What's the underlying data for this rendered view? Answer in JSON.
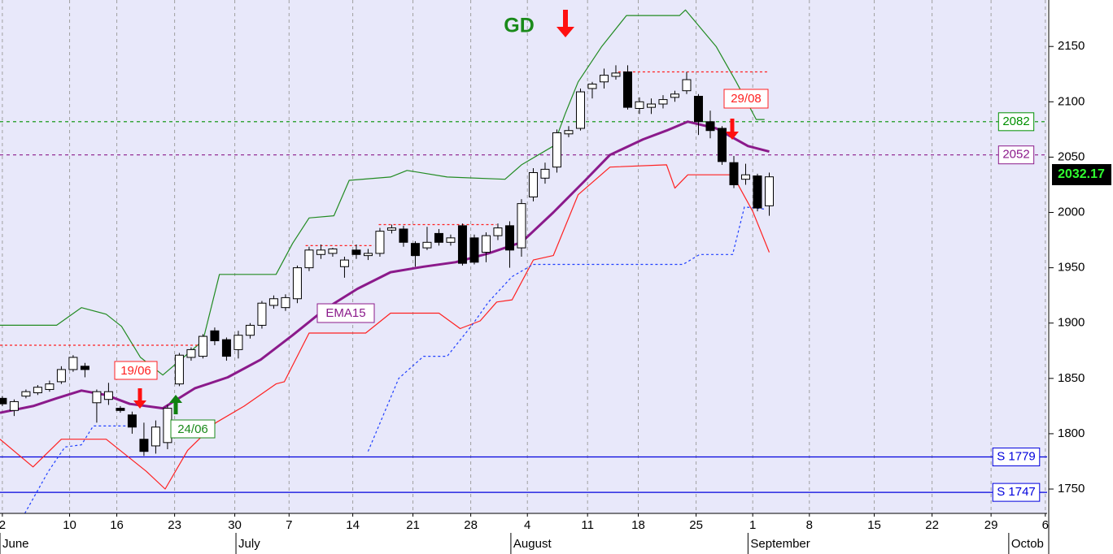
{
  "chart_data": {
    "type": "candlestick",
    "x": [
      0,
      1,
      2,
      3,
      4,
      5,
      6,
      7,
      8,
      9,
      10,
      11,
      12,
      13,
      14,
      15,
      16,
      17,
      18,
      19,
      20,
      21,
      22,
      23,
      24,
      25,
      26,
      27,
      28,
      29,
      30,
      31,
      32,
      33,
      34,
      35,
      36,
      37,
      38,
      39,
      40,
      41,
      42,
      43,
      44,
      45,
      46,
      47,
      48,
      49,
      50,
      51,
      52,
      53,
      54,
      55,
      56,
      57,
      58,
      59,
      60,
      61,
      62,
      63,
      64,
      65
    ],
    "open": [
      1832,
      1821,
      1834,
      1837,
      1840,
      1847,
      1858,
      1861,
      1828,
      1831,
      1823,
      1817,
      1795,
      1789,
      1792,
      1845,
      1869,
      1870,
      1893,
      1885,
      1876,
      1889,
      1898,
      1916,
      1914,
      1922,
      1950,
      1962,
      1963,
      1951,
      1966,
      1961,
      1963,
      1984,
      1985,
      1972,
      1968,
      1981,
      1973,
      1988,
      1977,
      1964,
      1979,
      1988,
      1968,
      2014,
      2031,
      2041,
      2071,
      2076,
      2112,
      2118,
      2123,
      2127,
      2094,
      2095,
      2098,
      2104,
      2110,
      2105,
      2082,
      2076,
      2045,
      2030,
      2033,
      2006
    ],
    "high": [
      1834,
      1831,
      1840,
      1844,
      1848,
      1861,
      1871,
      1864,
      1840,
      1846,
      1825,
      1820,
      1810,
      1812,
      1826,
      1873,
      1878,
      1890,
      1896,
      1887,
      1893,
      1900,
      1920,
      1925,
      1926,
      1952,
      1969,
      1971,
      1968,
      1960,
      1971,
      1967,
      1986,
      1989,
      1988,
      1974,
      1987,
      1985,
      1980,
      1990,
      1980,
      1982,
      1990,
      1992,
      2012,
      2040,
      2045,
      2075,
      2078,
      2112,
      2118,
      2130,
      2133,
      2133,
      2104,
      2103,
      2106,
      2110,
      2127,
      2107,
      2092,
      2078,
      2051,
      2044,
      2035,
      2036
    ],
    "low": [
      1825,
      1816,
      1832,
      1835,
      1838,
      1845,
      1856,
      1851,
      1810,
      1826,
      1819,
      1800,
      1780,
      1782,
      1786,
      1843,
      1866,
      1868,
      1880,
      1866,
      1868,
      1886,
      1895,
      1913,
      1911,
      1918,
      1947,
      1958,
      1960,
      1941,
      1958,
      1957,
      1960,
      1981,
      1969,
      1951,
      1966,
      1970,
      1970,
      1952,
      1953,
      1955,
      1975,
      1950,
      1960,
      2010,
      2026,
      2036,
      2068,
      2074,
      2103,
      2112,
      2120,
      2093,
      2089,
      2089,
      2094,
      2100,
      2107,
      2070,
      2067,
      2043,
      2022,
      2025,
      2001,
      1997
    ],
    "close": [
      1827,
      1829,
      1838,
      1842,
      1845,
      1858,
      1869,
      1858,
      1838,
      1838,
      1821,
      1806,
      1784,
      1806,
      1823,
      1871,
      1876,
      1888,
      1884,
      1870,
      1889,
      1898,
      1918,
      1922,
      1923,
      1950,
      1966,
      1966,
      1967,
      1957,
      1962,
      1963,
      1983,
      1986,
      1973,
      1961,
      1973,
      1973,
      1977,
      1954,
      1955,
      1979,
      1986,
      1966,
      2008,
      2036,
      2039,
      2072,
      2074,
      2109,
      2116,
      2124,
      2126,
      2095,
      2100,
      2098,
      2102,
      2107,
      2120,
      2082,
      2074,
      2046,
      2025,
      2034,
      2004,
      2032.17
    ],
    "up_color": "#ffffff",
    "down_color": "#000000",
    "xlim": [
      -0.2,
      88.55
    ],
    "xticks": [
      {
        "value": 0,
        "label": "2"
      },
      {
        "value": 5.7,
        "label": "10"
      },
      {
        "value": 9.7,
        "label": "16"
      },
      {
        "value": 14.6,
        "label": "23"
      },
      {
        "value": 19.7,
        "label": "30"
      },
      {
        "value": 24.3,
        "label": "7"
      },
      {
        "value": 29.7,
        "label": "14"
      },
      {
        "value": 34.8,
        "label": "21"
      },
      {
        "value": 39.7,
        "label": "28"
      },
      {
        "value": 44.5,
        "label": "4"
      },
      {
        "value": 49.6,
        "label": "11"
      },
      {
        "value": 53.9,
        "label": "18"
      },
      {
        "value": 58.8,
        "label": "25"
      },
      {
        "value": 63.6,
        "label": "1"
      },
      {
        "value": 68.4,
        "label": "8"
      },
      {
        "value": 73.9,
        "label": "15"
      },
      {
        "value": 78.8,
        "label": "22"
      },
      {
        "value": 83.8,
        "label": "29"
      },
      {
        "value": 88.4,
        "label": "6"
      }
    ],
    "month_ticks": [
      {
        "value": -0.2,
        "label": "June"
      },
      {
        "value": 19.8,
        "label": "July"
      },
      {
        "value": 43.1,
        "label": "August"
      },
      {
        "value": 63.2,
        "label": "September"
      },
      {
        "value": 85.3,
        "label": "Octob"
      }
    ],
    "ylim": [
      1728,
      2192
    ],
    "yticks": [
      1750,
      1800,
      1850,
      1900,
      1950,
      2000,
      2050,
      2100,
      2150
    ],
    "grid": "x",
    "lines": [
      {
        "color": "#228b22",
        "width": 1.2,
        "dash": "solid",
        "x": [
          -0.2,
          4.6,
          6.7,
          8.8,
          10.1,
          11.7,
          13.6,
          17,
          18.4,
          23.2,
          24.6,
          26,
          28.1,
          29.4,
          32.9,
          34.3,
          37.7,
          42.6,
          44,
          46.7,
          47.7,
          48.8,
          50.8,
          52.9,
          57.4,
          57.9,
          60.5,
          62.2,
          63.9,
          64.6
        ],
        "values": [
          1898,
          1898,
          1914,
          1908,
          1897,
          1869,
          1853,
          1884,
          1944,
          1944,
          1972,
          1995,
          1997,
          2029,
          2032,
          2038,
          2032,
          2030,
          2043,
          2060,
          2089,
          2118,
          2150,
          2178,
          2178,
          2183,
          2150,
          2118,
          2084,
          2084
        ]
      },
      {
        "color": "#ff2020",
        "width": 1.2,
        "dash": "solid",
        "x": [
          -0.2,
          2.6,
          5,
          8.8,
          12.2,
          13.8,
          15.7,
          18.1,
          20.5,
          23.2,
          23.9,
          26,
          30.8,
          32.9,
          37,
          38.8,
          40.5,
          41.9,
          43.2,
          45,
          46.7,
          48.8,
          51.5,
          56.3,
          57,
          58.1,
          61.9,
          63.6,
          65
        ],
        "values": [
          1795,
          1770,
          1795,
          1795,
          1766,
          1750,
          1785,
          1810,
          1825,
          1845,
          1847,
          1891,
          1891,
          1909,
          1909,
          1895,
          1902,
          1919,
          1921,
          1957,
          1961,
          2016,
          2041,
          2043,
          2022,
          2034,
          2034,
          2001,
          1964
        ]
      },
      {
        "color": "#2040ff",
        "width": 1.2,
        "dash": "dotted",
        "x": [
          1.9,
          3.9,
          5.3,
          6.7,
          7.7,
          10.8,
          20,
          31,
          33.6,
          35.7,
          37.7,
          39.8,
          41.2,
          43.2,
          45,
          57.7,
          59.1,
          61.9,
          62.9,
          64.6
        ],
        "values": [
          1728,
          1766,
          1788,
          1790,
          1807,
          1807,
          null,
          1784,
          1850,
          1870,
          1870,
          1898,
          1919,
          1942,
          1953,
          1953,
          1962,
          1962,
          2005,
          2003
        ]
      },
      {
        "color": "#ff2020",
        "width": 1.2,
        "dash": "dotted",
        "x": [
          -0.2,
          17.4,
          21,
          25.7,
          31.5,
          31.6,
          31.9,
          41.9,
          47,
          52.2,
          65
        ],
        "values": [
          1880,
          1880,
          null,
          1970,
          1970,
          null,
          1989,
          1989,
          null,
          2127,
          2127
        ]
      },
      {
        "color": "#8b1a8b",
        "width": 3,
        "dash": "solid",
        "x": [
          -0.2,
          2.6,
          4.6,
          6.7,
          8.8,
          10.8,
          13.6,
          16.3,
          19.1,
          21.9,
          24.6,
          27.4,
          30.1,
          32.9,
          35.7,
          38.4,
          41.2,
          44,
          46.7,
          49.4,
          51.5,
          54.3,
          56.3,
          58.1,
          60.5,
          63.2,
          65
        ],
        "values": [
          1819,
          1825,
          1832,
          1839,
          1835,
          1827,
          1823,
          1841,
          1851,
          1867,
          1889,
          1913,
          1931,
          1946,
          1951,
          1955,
          1963,
          1973,
          2000,
          2029,
          2052,
          2066,
          2074,
          2082,
          2076,
          2060,
          2055
        ]
      }
    ],
    "levels": [
      {
        "value": 2082,
        "label": "2082",
        "color": "#009000",
        "style": "dashed"
      },
      {
        "value": 2052,
        "label": "2052",
        "color": "#8b1a8b",
        "style": "dashed"
      },
      {
        "value": 1779,
        "label": "S 1779",
        "color": "#0000dd",
        "style": "solid"
      },
      {
        "value": 1747,
        "label": "S 1747",
        "color": "#0000dd",
        "style": "solid"
      }
    ],
    "last_price": 2032.17,
    "annotations": [
      "GD",
      "19/06",
      "24/06",
      "29/08",
      "EMA15"
    ]
  }
}
